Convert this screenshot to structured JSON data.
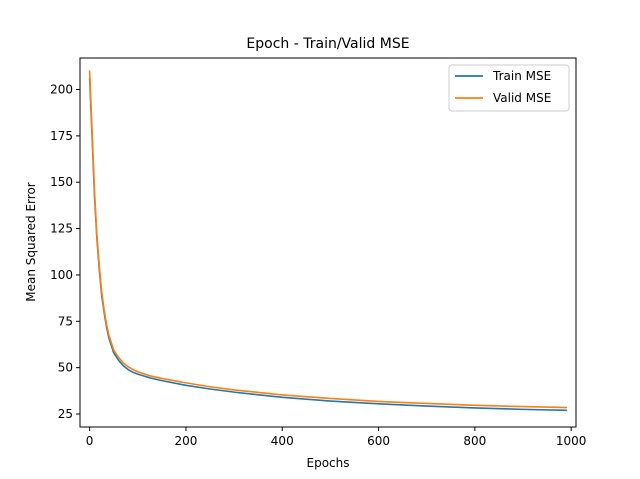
{
  "chart_data": {
    "type": "line",
    "title": "Epoch - Train/Valid MSE",
    "xlabel": "Epochs",
    "ylabel": "Mean Squared Error",
    "xlim": [
      -20,
      1010
    ],
    "ylim": [
      18,
      217
    ],
    "xticks": [
      0,
      200,
      400,
      600,
      800,
      1000
    ],
    "yticks": [
      25,
      50,
      75,
      100,
      125,
      150,
      175,
      200
    ],
    "grid": false,
    "legend_position": "top-right",
    "x": [
      0,
      5,
      10,
      15,
      20,
      25,
      30,
      35,
      40,
      50,
      60,
      70,
      80,
      90,
      100,
      125,
      150,
      200,
      250,
      300,
      400,
      500,
      600,
      700,
      800,
      900,
      990
    ],
    "series": [
      {
        "name": "Train MSE",
        "color": "#1f77b4",
        "values": [
          206,
          175,
          143,
          120,
          103,
          89,
          80,
          72,
          66,
          58,
          54,
          51,
          49,
          47.5,
          46.5,
          44.5,
          43,
          40.5,
          38.5,
          36.8,
          34,
          32,
          30.5,
          29.3,
          28.3,
          27.5,
          27
        ]
      },
      {
        "name": "Valid MSE",
        "color": "#ff7f0e",
        "values": [
          210,
          178,
          146,
          122,
          105,
          91,
          81.5,
          73.5,
          67.5,
          59.5,
          55.5,
          52.5,
          50.5,
          49,
          47.8,
          45.6,
          44.2,
          41.8,
          39.7,
          38,
          35.3,
          33.4,
          31.8,
          30.7,
          29.7,
          29,
          28.5
        ]
      }
    ]
  }
}
